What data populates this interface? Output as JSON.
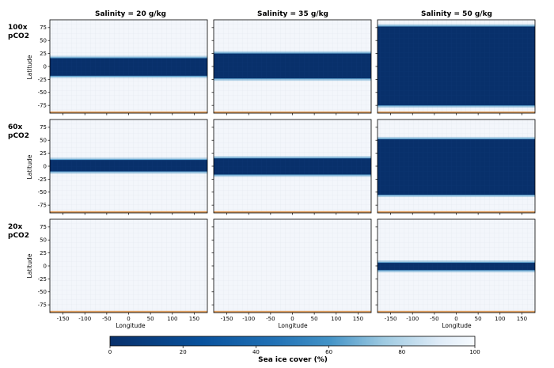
{
  "chart_data": {
    "type": "heatmap",
    "column_titles": [
      "Salinity = 20 g/kg",
      "Salinity = 35 g/kg",
      "Salinity = 50 g/kg"
    ],
    "row_labels": [
      [
        "100x",
        "pCO2"
      ],
      [
        "60x",
        "pCO2"
      ],
      [
        "20x",
        "pCO2"
      ]
    ],
    "xlabel": "Longitude",
    "ylabel": "Latitude",
    "xlim": [
      -180,
      180
    ],
    "ylim": [
      -90,
      90
    ],
    "xticks": [
      -150,
      -100,
      -50,
      0,
      50,
      100,
      150
    ],
    "yticks": [
      75,
      50,
      25,
      0,
      -25,
      -50,
      -75
    ],
    "panels": [
      {
        "co2": "100x",
        "salinity": "20 g/kg",
        "open_ocean_band_lat": [
          -18,
          16
        ]
      },
      {
        "co2": "100x",
        "salinity": "35 g/kg",
        "open_ocean_band_lat": [
          -23,
          25
        ]
      },
      {
        "co2": "100x",
        "salinity": "50 g/kg",
        "open_ocean_band_lat": [
          -75,
          77
        ]
      },
      {
        "co2": "60x",
        "salinity": "20 g/kg",
        "open_ocean_band_lat": [
          -10,
          12
        ]
      },
      {
        "co2": "60x",
        "salinity": "35 g/kg",
        "open_ocean_band_lat": [
          -16,
          15
        ]
      },
      {
        "co2": "60x",
        "salinity": "50 g/kg",
        "open_ocean_band_lat": [
          -55,
          52
        ]
      },
      {
        "co2": "20x",
        "salinity": "20 g/kg",
        "open_ocean_band_lat": null
      },
      {
        "co2": "20x",
        "salinity": "35 g/kg",
        "open_ocean_band_lat": null
      },
      {
        "co2": "20x",
        "salinity": "50 g/kg",
        "open_ocean_band_lat": [
          -8,
          6
        ]
      }
    ],
    "colorbar": {
      "label": "Sea ice cover (%)",
      "range": [
        0,
        100
      ],
      "ticks": [
        0,
        20,
        40,
        60,
        80,
        100
      ],
      "orientation": "horizontal",
      "colormap": "Blues_r",
      "color_low": "#08306b",
      "color_high": "#f7fbff"
    },
    "colors": {
      "dark_band": "#08306b",
      "band_edge": "#4292c6",
      "ice": "#f3f6fb",
      "land_strip": "#e0a060",
      "grid": "#e3e8ef"
    }
  }
}
